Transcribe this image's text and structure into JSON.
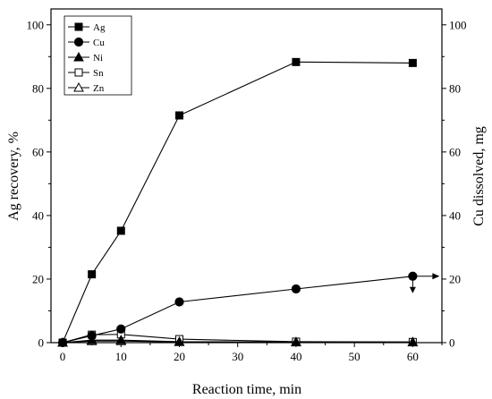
{
  "chart_data": {
    "type": "line",
    "xlabel": "Reaction time, min",
    "ylabel_left": "Ag recovery, %",
    "ylabel_right": "Cu dissolved, mg",
    "xlim": [
      -2,
      65
    ],
    "ylim_left": [
      0,
      105
    ],
    "ylim_right": [
      0,
      105
    ],
    "x_ticks": [
      0,
      10,
      20,
      30,
      40,
      50,
      60
    ],
    "y_ticks_left": [
      0,
      20,
      40,
      60,
      80,
      100
    ],
    "y_ticks_right": [
      0,
      20,
      40,
      60,
      80,
      100
    ],
    "grid": false,
    "legend_position": "top-left",
    "series": [
      {
        "name": "Ag",
        "marker": "filled-square",
        "axis": "left",
        "x": [
          0,
          5,
          10,
          20,
          40,
          60
        ],
        "y": [
          0,
          21.5,
          35.2,
          71.5,
          88.3,
          88.0
        ]
      },
      {
        "name": "Cu",
        "marker": "filled-circle",
        "axis": "right",
        "x": [
          0,
          5,
          10,
          20,
          40,
          60
        ],
        "y": [
          0,
          2.2,
          4.3,
          12.8,
          16.9,
          20.9
        ]
      },
      {
        "name": "Ni",
        "marker": "filled-triangle",
        "axis": "left",
        "x": [
          0,
          5,
          10,
          20,
          40,
          60
        ],
        "y": [
          0,
          0.8,
          0.8,
          0.3,
          0.2,
          0.2
        ]
      },
      {
        "name": "Sn",
        "marker": "open-square",
        "axis": "left",
        "x": [
          0,
          5,
          10,
          20,
          40,
          60
        ],
        "y": [
          0,
          2.5,
          2.6,
          1.1,
          0.3,
          0.2
        ]
      },
      {
        "name": "Zn",
        "marker": "open-triangle",
        "axis": "left",
        "x": [
          0,
          5,
          10,
          20,
          40,
          60
        ],
        "y": [
          0,
          0.5,
          0.5,
          0.2,
          0.1,
          0.1
        ]
      }
    ]
  }
}
